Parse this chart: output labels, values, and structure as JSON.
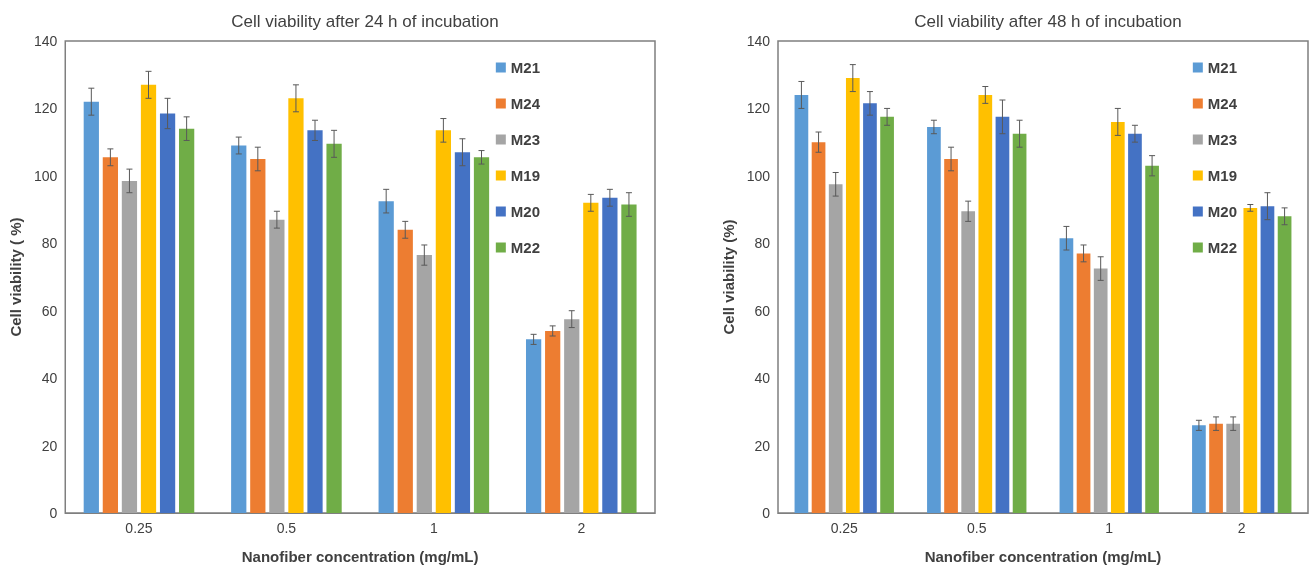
{
  "chart_data": [
    {
      "type": "bar",
      "title": "Cell viability after 24 h of incubation",
      "xlabel": "Nanofiber concentration (mg/mL)",
      "ylabel": "Cell viability ( %)",
      "categories": [
        "0.25",
        "0.5",
        "1",
        "2"
      ],
      "ylim": [
        0,
        140
      ],
      "yticks": [
        0,
        20,
        40,
        60,
        80,
        100,
        120,
        140
      ],
      "legend": "top right",
      "series": [
        {
          "name": "M21",
          "color": "#5b9bd5",
          "values": [
            122,
            109,
            92.5,
            51.5
          ],
          "errors": [
            4,
            2.5,
            3.5,
            1.5
          ]
        },
        {
          "name": "M24",
          "color": "#ed7d31",
          "values": [
            105.5,
            105,
            84,
            54
          ],
          "errors": [
            2.5,
            3.5,
            2.5,
            1.5
          ]
        },
        {
          "name": "M23",
          "color": "#a5a5a5",
          "values": [
            98.5,
            87,
            76.5,
            57.5
          ],
          "errors": [
            3.5,
            2.5,
            3,
            2.5
          ]
        },
        {
          "name": "M19",
          "color": "#ffc000",
          "values": [
            127,
            123,
            113.5,
            92
          ],
          "errors": [
            4,
            4,
            3.5,
            2.5
          ]
        },
        {
          "name": "M20",
          "color": "#4472c4",
          "values": [
            118.5,
            113.5,
            107,
            93.5
          ],
          "errors": [
            4.5,
            3,
            4,
            2.5
          ]
        },
        {
          "name": "M22",
          "color": "#70ad47",
          "values": [
            114,
            109.5,
            105.5,
            91.5
          ],
          "errors": [
            3.5,
            4,
            2,
            3.5
          ]
        }
      ]
    },
    {
      "type": "bar",
      "title": "Cell viability after 48 h of incubation",
      "xlabel": "Nanofiber concentration (mg/mL)",
      "ylabel": "Cell viability (%)",
      "categories": [
        "0.25",
        "0.5",
        "1",
        "2"
      ],
      "ylim": [
        0,
        140
      ],
      "yticks": [
        0,
        20,
        40,
        60,
        80,
        100,
        120,
        140
      ],
      "legend": "top right",
      "series": [
        {
          "name": "M21",
          "color": "#5b9bd5",
          "values": [
            124,
            114.5,
            81.5,
            26
          ],
          "errors": [
            4,
            2,
            3.5,
            1.5
          ]
        },
        {
          "name": "M24",
          "color": "#ed7d31",
          "values": [
            110,
            105,
            77,
            26.5
          ],
          "errors": [
            3,
            3.5,
            2.5,
            2
          ]
        },
        {
          "name": "M23",
          "color": "#a5a5a5",
          "values": [
            97.5,
            89.5,
            72.5,
            26.5
          ],
          "errors": [
            3.5,
            3,
            3.5,
            2
          ]
        },
        {
          "name": "M19",
          "color": "#ffc000",
          "values": [
            129,
            124,
            116,
            90.5
          ],
          "errors": [
            4,
            2.5,
            4,
            1
          ]
        },
        {
          "name": "M20",
          "color": "#4472c4",
          "values": [
            121.5,
            117.5,
            112.5,
            91
          ],
          "errors": [
            3.5,
            5,
            2.5,
            4
          ]
        },
        {
          "name": "M22",
          "color": "#70ad47",
          "values": [
            117.5,
            112.5,
            103,
            88
          ],
          "errors": [
            2.5,
            4,
            3,
            2.5
          ]
        }
      ]
    }
  ]
}
